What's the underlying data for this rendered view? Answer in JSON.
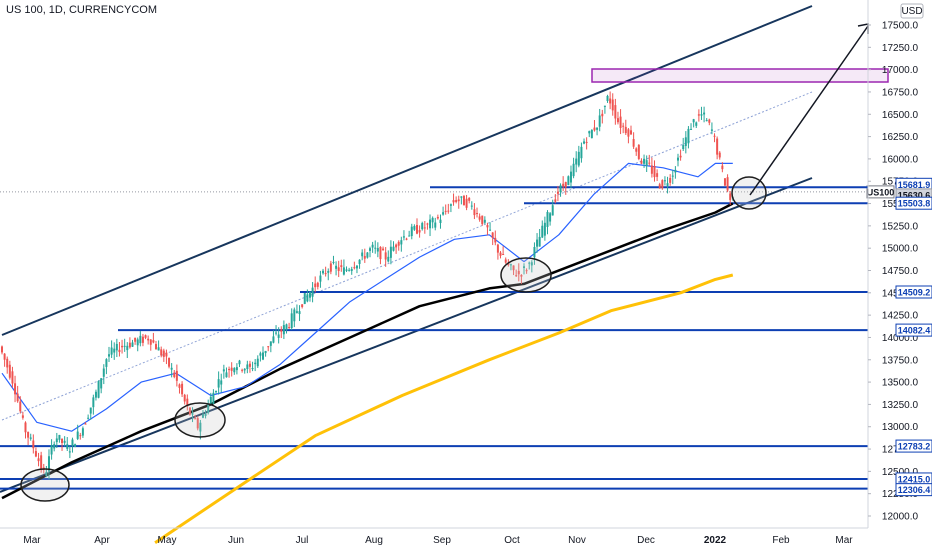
{
  "header": {
    "title": "US 100, 1D, CURRENCYCOM",
    "currency": "USD"
  },
  "chart_data": {
    "type": "line",
    "title": "US 100, 1D, CURRENCYCOM",
    "xlabel": "",
    "ylabel": "",
    "ylim": [
      11950,
      17700
    ],
    "y_ticks": [
      12000,
      12250,
      12500,
      12750,
      13000,
      13250,
      13500,
      13750,
      14000,
      14250,
      14500,
      14750,
      15000,
      15250,
      15500,
      15750,
      16000,
      16250,
      16500,
      16750,
      17000,
      17250,
      17500
    ],
    "x_tick_labels": [
      "Mar",
      "Apr",
      "May",
      "Jun",
      "Jul",
      "Aug",
      "Sep",
      "Oct",
      "Nov",
      "Dec",
      "2022",
      "Feb",
      "Mar"
    ],
    "price_labels": [
      {
        "text": "15681.9",
        "value": 15681.9,
        "style": "blue"
      },
      {
        "text": "15630.6",
        "value": 15630.6,
        "style": "grey"
      },
      {
        "text": "15503.8",
        "value": 15503.8,
        "style": "blue"
      },
      {
        "text": "14509.2",
        "value": 14509.2,
        "style": "blue"
      },
      {
        "text": "14082.4",
        "value": 14082.4,
        "style": "blue"
      },
      {
        "text": "12783.2",
        "value": 12783.2,
        "style": "blue"
      },
      {
        "text": "12415.0",
        "value": 12415.0,
        "style": "blue"
      },
      {
        "text": "12306.4",
        "value": 12306.4,
        "style": "blue"
      }
    ],
    "symbol_label": "US100",
    "colors": {
      "up": "#26a69a",
      "down": "#ef5350",
      "ma_fast": "#2962ff",
      "ma_slow": "#000000",
      "ma_long": "#ffc107",
      "level": "#0d3fb3",
      "channel": "#17365d",
      "resistance_box": "#9c27b0"
    },
    "series": [
      {
        "name": "",
        "kind": "price",
        "points": [
          [
            0,
            13900
          ],
          [
            8,
            13500
          ],
          [
            14,
            13000
          ],
          [
            20,
            12750
          ],
          [
            26,
            12450
          ],
          [
            32,
            12900
          ],
          [
            40,
            12750
          ],
          [
            48,
            13000
          ],
          [
            56,
            13400
          ],
          [
            62,
            13800
          ],
          [
            70,
            13900
          ],
          [
            78,
            13950
          ],
          [
            86,
            14000
          ],
          [
            94,
            13800
          ],
          [
            100,
            13600
          ],
          [
            108,
            13200
          ],
          [
            114,
            13000
          ],
          [
            120,
            13250
          ],
          [
            128,
            13600
          ],
          [
            136,
            13700
          ],
          [
            144,
            13650
          ],
          [
            150,
            13800
          ],
          [
            158,
            14000
          ],
          [
            166,
            14150
          ],
          [
            174,
            14400
          ],
          [
            182,
            14600
          ],
          [
            190,
            14800
          ],
          [
            198,
            14750
          ],
          [
            206,
            14850
          ],
          [
            214,
            15000
          ],
          [
            222,
            14900
          ],
          [
            230,
            15100
          ],
          [
            238,
            15200
          ],
          [
            246,
            15250
          ],
          [
            254,
            15350
          ],
          [
            262,
            15550
          ],
          [
            270,
            15500
          ],
          [
            278,
            15300
          ],
          [
            286,
            15000
          ],
          [
            292,
            14800
          ],
          [
            298,
            14700
          ],
          [
            304,
            14800
          ],
          [
            312,
            15200
          ],
          [
            320,
            15600
          ],
          [
            328,
            15800
          ],
          [
            336,
            16200
          ],
          [
            344,
            16400
          ],
          [
            350,
            16700
          ],
          [
            356,
            16400
          ],
          [
            362,
            16300
          ],
          [
            368,
            16000
          ],
          [
            374,
            15900
          ],
          [
            380,
            15700
          ],
          [
            386,
            15800
          ],
          [
            392,
            16100
          ],
          [
            398,
            16400
          ],
          [
            404,
            16500
          ],
          [
            410,
            16300
          ],
          [
            416,
            15800
          ],
          [
            420,
            15550
          ]
        ]
      },
      {
        "name": "",
        "kind": "ma_fast",
        "points": [
          [
            0,
            13600
          ],
          [
            20,
            13050
          ],
          [
            40,
            12950
          ],
          [
            60,
            13200
          ],
          [
            80,
            13500
          ],
          [
            100,
            13600
          ],
          [
            120,
            13350
          ],
          [
            140,
            13450
          ],
          [
            160,
            13700
          ],
          [
            180,
            14050
          ],
          [
            200,
            14400
          ],
          [
            220,
            14650
          ],
          [
            240,
            14900
          ],
          [
            260,
            15100
          ],
          [
            280,
            15150
          ],
          [
            300,
            14850
          ],
          [
            320,
            15150
          ],
          [
            340,
            15600
          ],
          [
            360,
            15950
          ],
          [
            380,
            15900
          ],
          [
            400,
            15800
          ],
          [
            410,
            15950
          ],
          [
            420,
            15950
          ]
        ]
      },
      {
        "name": "",
        "kind": "ma_slow",
        "points": [
          [
            0,
            12200
          ],
          [
            40,
            12600
          ],
          [
            80,
            12950
          ],
          [
            120,
            13250
          ],
          [
            160,
            13650
          ],
          [
            200,
            14000
          ],
          [
            240,
            14350
          ],
          [
            280,
            14550
          ],
          [
            300,
            14600
          ],
          [
            340,
            14900
          ],
          [
            380,
            15200
          ],
          [
            410,
            15400
          ],
          [
            420,
            15500
          ]
        ]
      },
      {
        "name": "",
        "kind": "ma_long",
        "points": [
          [
            88,
            11700
          ],
          [
            130,
            12250
          ],
          [
            180,
            12900
          ],
          [
            230,
            13350
          ],
          [
            280,
            13750
          ],
          [
            320,
            14050
          ],
          [
            350,
            14300
          ],
          [
            390,
            14500
          ],
          [
            410,
            14650
          ],
          [
            420,
            14700
          ]
        ]
      }
    ]
  }
}
